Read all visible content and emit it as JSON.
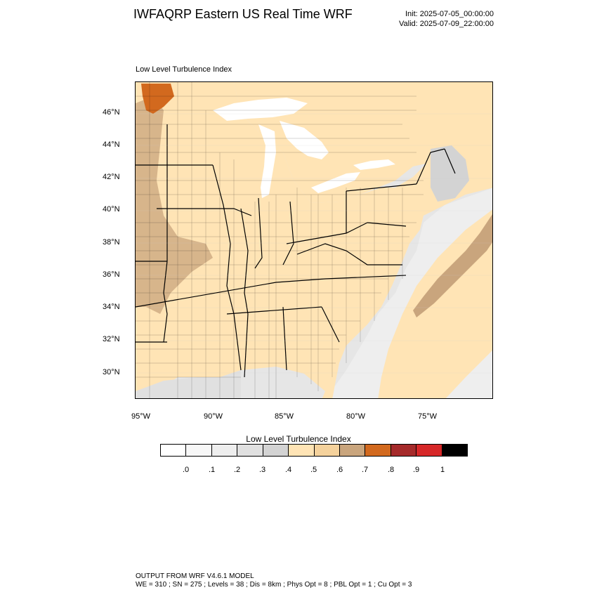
{
  "header": {
    "title": "IWFAQRP Eastern US Real Time WRF",
    "init": "Init: 2025-07-05_00:00:00",
    "valid": "Valid: 2025-07-09_22:00:00"
  },
  "map": {
    "subtitle": "Low Level Turbulence Index",
    "lat_ticks": [
      "46°N",
      "44°N",
      "42°N",
      "40°N",
      "38°N",
      "36°N",
      "34°N",
      "32°N",
      "30°N"
    ],
    "lon_ticks": [
      "95°W",
      "90°W",
      "85°W",
      "80°W",
      "75°W"
    ],
    "colors": {
      "water": "#ffffff",
      "low_gray": "#e6e6e6",
      "mid_gray": "#d6d6d6",
      "land_light": "#ffe4b5",
      "land_mid": "#f5d29c",
      "tan": "#c9a57d",
      "orange": "#d2691e",
      "boundary": "#000000"
    }
  },
  "legend": {
    "title": "Low Level Turbulence Index",
    "colors": [
      "#ffffff",
      "#f7f7f7",
      "#eeeeee",
      "#e0e0e0",
      "#d3d3d3",
      "#ffe4b5",
      "#f5d29c",
      "#c9a57d",
      "#d2691e",
      "#a52a2a",
      "#d62728",
      "#000000"
    ],
    "labels": [
      ".0",
      ".1",
      ".2",
      ".3",
      ".4",
      ".5",
      ".6",
      ".7",
      ".8",
      ".9",
      "1"
    ]
  },
  "footer": {
    "line1": "OUTPUT FROM WRF V4.6.1 MODEL",
    "line2": "WE = 310 ; SN = 275 ; Levels = 38 ; Dis = 8km ; Phys Opt = 8 ; PBL Opt = 1 ; Cu Opt = 3"
  }
}
